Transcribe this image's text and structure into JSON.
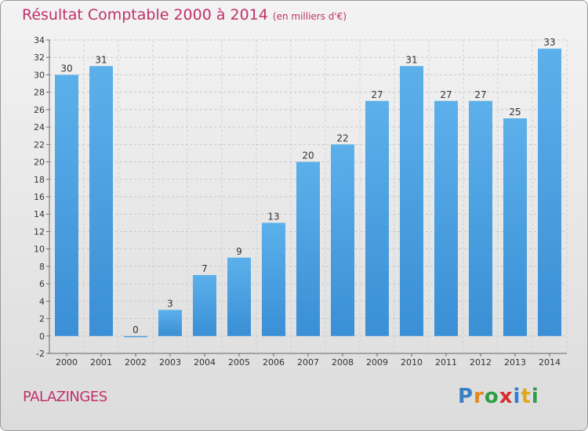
{
  "header": {
    "title": "Résultat Comptable 2000 à 2014",
    "subtitle": "(en milliers d'€)"
  },
  "footer": {
    "location": "PALAZINGES",
    "logo": [
      "P",
      "r",
      "o",
      "x",
      "i",
      "t",
      "i"
    ],
    "logo_colors": [
      "#3a7fc4",
      "#e08a1e",
      "#2e9e45",
      "#d62e2e",
      "#2e7fd6",
      "#e0a81e",
      "#2e9e45"
    ]
  },
  "chart_data": {
    "type": "bar",
    "categories": [
      "2000",
      "2001",
      "2002",
      "2003",
      "2004",
      "2005",
      "2006",
      "2007",
      "2008",
      "2009",
      "2010",
      "2011",
      "2012",
      "2013",
      "2014"
    ],
    "values": [
      30,
      31,
      0,
      3,
      7,
      9,
      13,
      20,
      22,
      27,
      31,
      27,
      27,
      25,
      33
    ],
    "title": "Résultat Comptable 2000 à 2014",
    "subtitle": "(en milliers d'€)",
    "ylim": [
      -2,
      34
    ],
    "yticks": [
      -2,
      0,
      2,
      4,
      6,
      8,
      10,
      12,
      14,
      16,
      18,
      20,
      22,
      24,
      26,
      28,
      30,
      32,
      34
    ],
    "grid": true,
    "bar_color": "#3a8fd6",
    "bar_color_light": "#5cb0ea"
  }
}
